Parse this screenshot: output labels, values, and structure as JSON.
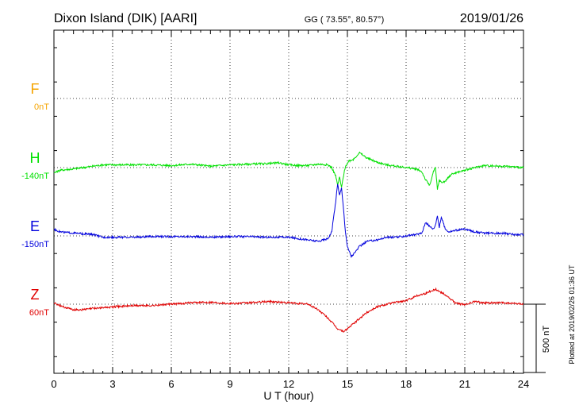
{
  "header": {
    "station": "Dixon Island (DIK)  [AARI]",
    "coords": "GG ( 73.55°,  80.57°)",
    "date": "2019/01/26"
  },
  "footer": {
    "xlabel": "U T (hour)",
    "plotted": "Plotted at 2019/02/26 01:36 UT",
    "scale": "500 nT"
  },
  "colors": {
    "F": "#f5a400",
    "H": "#00e000",
    "E": "#0000dd",
    "Z": "#e00000"
  },
  "chart_data": {
    "type": "line",
    "title": "Dixon Island (DIK)  [AARI]",
    "xlabel": "U T (hour)",
    "xlim": [
      0,
      24
    ],
    "xticks": [
      "0",
      "3",
      "6",
      "9",
      "12",
      "15",
      "18",
      "21",
      "24"
    ],
    "grid": true,
    "scale_bar_nT": 500,
    "series": [
      {
        "name": "F",
        "baseline_label": "0nT",
        "color": "#f5a400",
        "x": [],
        "y": []
      },
      {
        "name": "H",
        "baseline_label": "-140nT",
        "color": "#00e000",
        "x": [
          0,
          0.3,
          1.0,
          1.5,
          2.0,
          2.5,
          3.0,
          4.0,
          5.0,
          6.0,
          7.0,
          8.0,
          9.0,
          10.0,
          11.0,
          11.5,
          12.0,
          12.5,
          13.0,
          13.5,
          14.0,
          14.2,
          14.4,
          14.5,
          14.6,
          14.7,
          14.8,
          14.9,
          15.1,
          15.3,
          15.5,
          15.6,
          15.8,
          16.0,
          16.5,
          17.0,
          17.5,
          18.0,
          18.5,
          18.8,
          19.0,
          19.2,
          19.4,
          19.5,
          19.6,
          19.7,
          19.8,
          20.0,
          20.3,
          20.5,
          21.0,
          21.5,
          22.0,
          23.0,
          24.0
        ],
        "y": [
          -40,
          -20,
          -10,
          0,
          10,
          20,
          20,
          20,
          20,
          15,
          25,
          10,
          20,
          25,
          30,
          35,
          20,
          15,
          15,
          25,
          20,
          0,
          -60,
          -130,
          -70,
          -150,
          -60,
          10,
          50,
          60,
          90,
          110,
          90,
          70,
          40,
          20,
          10,
          0,
          -10,
          -30,
          -90,
          -130,
          -30,
          0,
          -160,
          -90,
          -110,
          -100,
          -50,
          -40,
          -20,
          0,
          15,
          10,
          0
        ]
      },
      {
        "name": "E",
        "baseline_label": "-150nT",
        "color": "#0000dd",
        "x": [
          0,
          0.3,
          1.0,
          1.5,
          2.0,
          2.5,
          3.0,
          4.0,
          5.0,
          6.0,
          7.0,
          8.0,
          9.0,
          10.0,
          11.0,
          12.0,
          12.5,
          13.0,
          13.5,
          14.0,
          14.2,
          14.4,
          14.5,
          14.6,
          14.7,
          14.8,
          14.9,
          15.0,
          15.2,
          15.4,
          15.6,
          16.0,
          16.5,
          17.0,
          17.5,
          18.0,
          18.5,
          18.8,
          19.0,
          19.2,
          19.4,
          19.5,
          19.6,
          19.7,
          19.8,
          20.0,
          20.2,
          20.5,
          21.0,
          21.5,
          22.0,
          23.0,
          23.5,
          24.0
        ],
        "y": [
          50,
          30,
          20,
          15,
          10,
          -10,
          -10,
          -10,
          -5,
          -5,
          -5,
          -10,
          -5,
          -5,
          -10,
          -10,
          -20,
          -30,
          -40,
          -20,
          30,
          250,
          380,
          300,
          350,
          200,
          30,
          -80,
          -150,
          -120,
          -80,
          -40,
          -30,
          -10,
          -10,
          0,
          10,
          20,
          100,
          70,
          50,
          80,
          150,
          60,
          140,
          50,
          30,
          40,
          50,
          30,
          20,
          20,
          10,
          10
        ]
      },
      {
        "name": "Z",
        "baseline_label": "60nT",
        "color": "#e00000",
        "x": [
          0,
          0.3,
          0.7,
          1.0,
          1.5,
          2.0,
          3.0,
          4.0,
          5.0,
          6.0,
          7.0,
          8.0,
          9.0,
          10.0,
          11.0,
          12.0,
          13.0,
          13.5,
          14.0,
          14.5,
          14.8,
          15.0,
          15.5,
          16.0,
          16.5,
          17.0,
          17.5,
          18.0,
          18.5,
          19.0,
          19.5,
          20.0,
          20.5,
          21.0,
          21.5,
          22.0,
          23.0,
          24.0
        ],
        "y": [
          10,
          -10,
          -30,
          -40,
          -40,
          -30,
          -20,
          -10,
          -10,
          0,
          10,
          15,
          5,
          10,
          20,
          10,
          0,
          -40,
          -100,
          -180,
          -200,
          -180,
          -120,
          -60,
          -20,
          0,
          15,
          25,
          60,
          80,
          110,
          70,
          10,
          -5,
          20,
          10,
          10,
          0
        ]
      }
    ]
  }
}
